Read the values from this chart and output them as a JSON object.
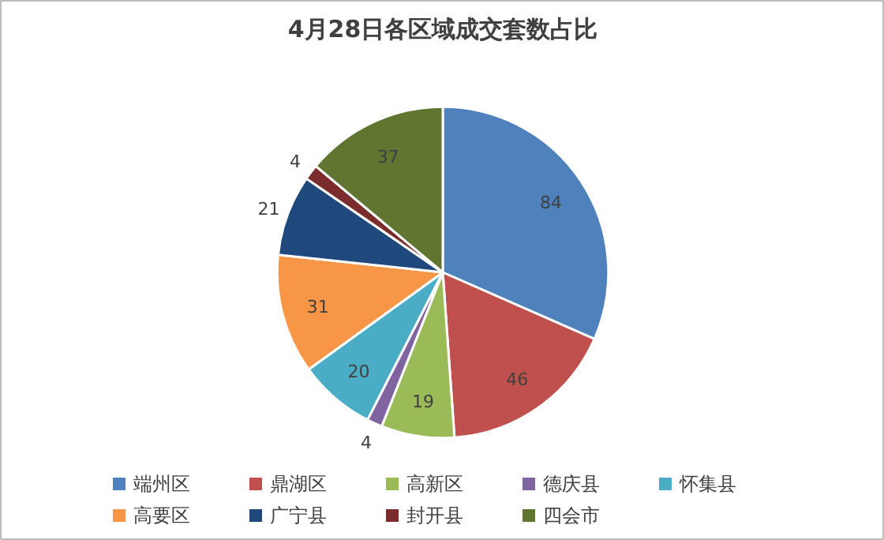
{
  "chart_data": {
    "type": "pie",
    "title": "4月28日各区域成交套数占比",
    "categories": [
      "端州区",
      "鼎湖区",
      "高新区",
      "德庆县",
      "怀集县",
      "高要区",
      "广宁县",
      "封开县",
      "四会市"
    ],
    "values": [
      84,
      46,
      19,
      4,
      20,
      31,
      21,
      4,
      37
    ],
    "colors": [
      "#4f81bd",
      "#c0504d",
      "#9bbb59",
      "#8064a2",
      "#4bacc6",
      "#f79646",
      "#1f497d",
      "#7b2c2c",
      "#5f7530"
    ],
    "data_labels": true,
    "legend": "bottom"
  }
}
